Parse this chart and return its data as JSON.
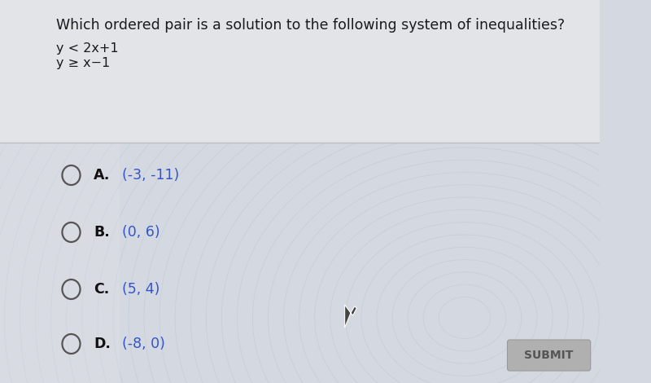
{
  "title": "Which ordered pair is a solution to the following system of inequalities?",
  "inequality1": "y < 2x+1",
  "inequality2": "y ≥ x−1",
  "options": [
    {
      "letter": "A.",
      "text": "(-3, -11)"
    },
    {
      "letter": "B.",
      "text": "(0, 6)"
    },
    {
      "letter": "C.",
      "text": "(5, 4)"
    },
    {
      "letter": "D.",
      "text": "(-8, 0)"
    }
  ],
  "submit_label": "SUBMIT",
  "bg_color": "#d4d8e0",
  "upper_bg_color": "#e2e4e8",
  "ripple_color": "#bcc8d8",
  "ripple_highlight": "#cce0f0",
  "text_color": "#1a1a1a",
  "option_letter_color": "#111111",
  "option_text_color": "#3355cc",
  "submit_bg": "#b0b0b0",
  "submit_text_color": "#555555",
  "divider_color": "#bbbbbb",
  "circle_color": "#555555",
  "title_fontsize": 12.5,
  "inequality_fontsize": 11.5,
  "option_fontsize": 12.5,
  "submit_fontsize": 10
}
